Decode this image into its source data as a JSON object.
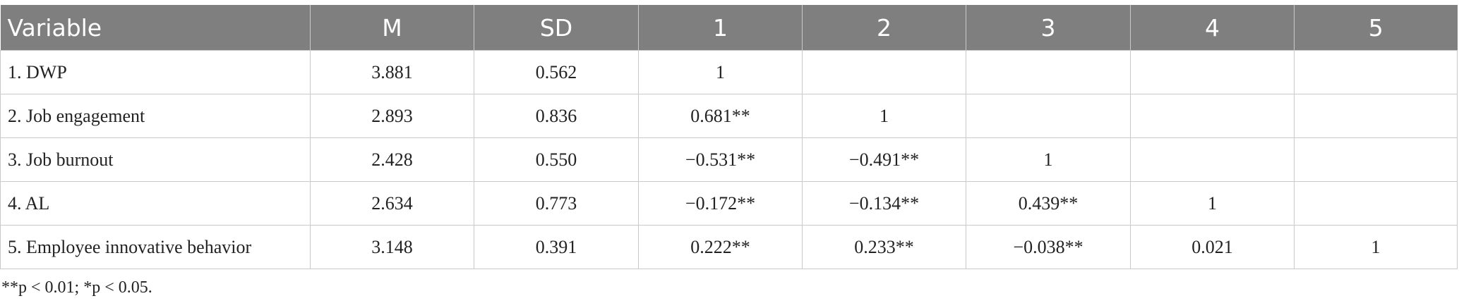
{
  "table": {
    "header": [
      "Variable",
      "M",
      "SD",
      "1",
      "2",
      "3",
      "4",
      "5"
    ],
    "rows": [
      [
        "1. DWP",
        "3.881",
        "0.562",
        "1"
      ],
      [
        "2. Job engagement",
        "2.893",
        "0.836",
        "0.681**",
        "1"
      ],
      [
        "3. Job burnout",
        "2.428",
        "0.550",
        "−0.531**",
        "−0.491**",
        "1"
      ],
      [
        "4. AL",
        "2.634",
        "0.773",
        "−0.172**",
        "−0.134**",
        "0.439**",
        "1"
      ],
      [
        "5. Employee innovative behavior",
        "3.148",
        "0.391",
        "0.222**",
        "0.233**",
        "−0.038**",
        "0.021",
        "1"
      ]
    ]
  },
  "footnote": "**p < 0.01; *p < 0.05."
}
